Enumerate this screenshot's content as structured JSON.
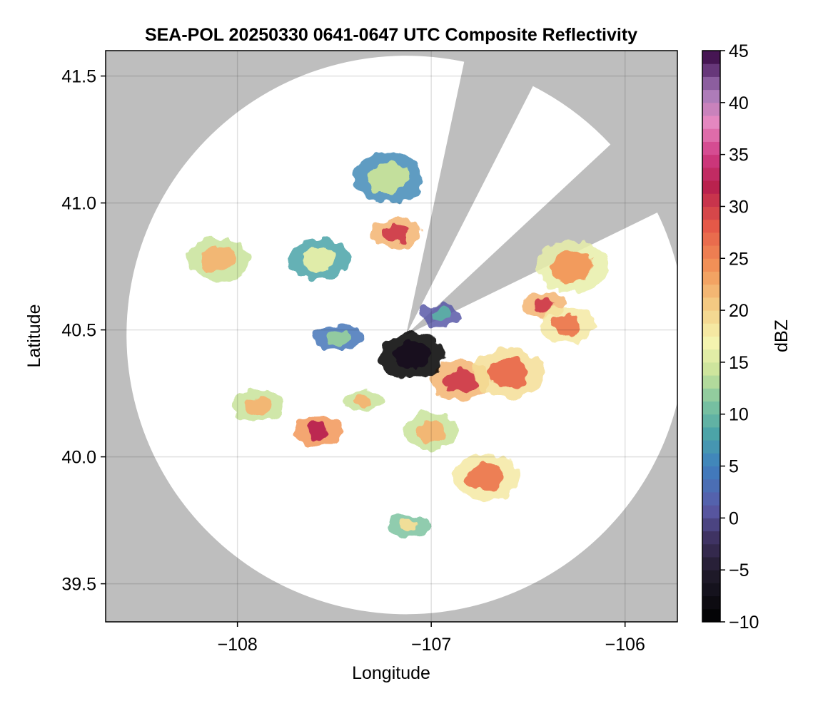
{
  "chart_data": {
    "type": "heatmap",
    "title": "SEA-POL 20250330 0641-0647 UTC Composite Reflectivity",
    "xlabel": "Longitude",
    "ylabel": "Latitude",
    "xlim": [
      -108.68,
      -105.73
    ],
    "ylim": [
      39.35,
      41.6
    ],
    "xticks": [
      -108,
      -107,
      -106
    ],
    "xtick_labels": [
      "−108",
      "−107",
      "−106"
    ],
    "yticks": [
      39.5,
      40.0,
      40.5,
      41.0,
      41.5
    ],
    "ytick_labels": [
      "39.5",
      "40.0",
      "40.5",
      "41.0",
      "41.5"
    ],
    "grid": true,
    "background_color": "#bebebe",
    "coverage_color": "#ffffff",
    "radar": {
      "center_lon": -107.13,
      "center_lat": 40.48,
      "range_deg_lat": 1.1,
      "blocked_sectors_deg_from_north": [
        [
          12,
          27
        ],
        [
          47,
          64
        ]
      ]
    },
    "colorbar": {
      "label": "dBZ",
      "min": -10,
      "max": 45,
      "step": 1.25,
      "ticks": [
        -10,
        -5,
        0,
        5,
        10,
        15,
        20,
        25,
        30,
        35,
        40,
        45
      ],
      "tick_labels": [
        "−10",
        "−5",
        "0",
        "5",
        "10",
        "15",
        "20",
        "25",
        "30",
        "35",
        "40",
        "45"
      ],
      "colormap_stops": [
        {
          "v": -10,
          "c": "#000000"
        },
        {
          "v": -5,
          "c": "#221c2e"
        },
        {
          "v": -2,
          "c": "#3e3160"
        },
        {
          "v": 1,
          "c": "#5a5aa8"
        },
        {
          "v": 5,
          "c": "#3e7fbf"
        },
        {
          "v": 8,
          "c": "#4aa3a8"
        },
        {
          "v": 11,
          "c": "#7cc3a0"
        },
        {
          "v": 14,
          "c": "#c8e39a"
        },
        {
          "v": 17,
          "c": "#f6f5b0"
        },
        {
          "v": 20,
          "c": "#f4d28a"
        },
        {
          "v": 24,
          "c": "#f29658"
        },
        {
          "v": 28,
          "c": "#e65b48"
        },
        {
          "v": 32,
          "c": "#b8204e"
        },
        {
          "v": 35,
          "c": "#d03c86"
        },
        {
          "v": 38,
          "c": "#e788c0"
        },
        {
          "v": 41,
          "c": "#a67ab8"
        },
        {
          "v": 43,
          "c": "#6a3a7e"
        },
        {
          "v": 45,
          "c": "#36063f"
        }
      ]
    },
    "echo_regions": [
      {
        "lon": -107.35,
        "lat": 40.22,
        "dbz": 22
      },
      {
        "lon": -107.58,
        "lat": 40.1,
        "dbz": 32
      },
      {
        "lon": -106.85,
        "lat": 40.3,
        "dbz": 30
      },
      {
        "lon": -106.6,
        "lat": 40.33,
        "dbz": 27
      },
      {
        "lon": -106.42,
        "lat": 40.6,
        "dbz": 30
      },
      {
        "lon": -106.3,
        "lat": 40.52,
        "dbz": 26
      },
      {
        "lon": -107.1,
        "lat": 40.4,
        "dbz": -7
      },
      {
        "lon": -106.95,
        "lat": 40.56,
        "dbz": 9
      },
      {
        "lon": -107.18,
        "lat": 40.88,
        "dbz": 30
      },
      {
        "lon": -107.58,
        "lat": 40.78,
        "dbz": 16
      },
      {
        "lon": -107.22,
        "lat": 41.1,
        "dbz": 14
      },
      {
        "lon": -107.48,
        "lat": 40.47,
        "dbz": 12
      },
      {
        "lon": -107.0,
        "lat": 40.1,
        "dbz": 22
      },
      {
        "lon": -106.72,
        "lat": 39.92,
        "dbz": 26
      },
      {
        "lon": -107.12,
        "lat": 39.73,
        "dbz": 19
      },
      {
        "lon": -107.9,
        "lat": 40.2,
        "dbz": 22
      },
      {
        "lon": -108.1,
        "lat": 40.78,
        "dbz": 22
      },
      {
        "lon": -106.27,
        "lat": 40.75,
        "dbz": 24
      }
    ]
  }
}
